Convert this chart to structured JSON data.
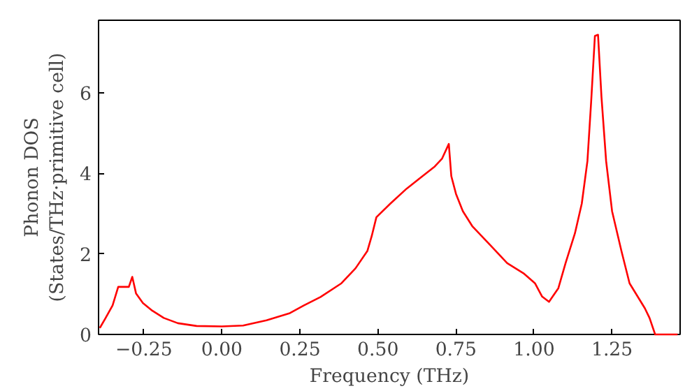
{
  "chart_data": {
    "type": "line",
    "xlabel": "Frequency (THz)",
    "ylabel": "Phonon DOS\n(States/THz·primitive cell)",
    "xlim": [
      -0.395,
      1.468
    ],
    "ylim": [
      0,
      7.8
    ],
    "xticks": [
      {
        "value": -0.25,
        "label": "−0.25"
      },
      {
        "value": 0,
        "label": "0.00"
      },
      {
        "value": 0.25,
        "label": "0.25"
      },
      {
        "value": 0.5,
        "label": "0.50"
      },
      {
        "value": 0.75,
        "label": "0.75"
      },
      {
        "value": 1.0,
        "label": "1.00"
      },
      {
        "value": 1.25,
        "label": "1.25"
      }
    ],
    "yticks": [
      0,
      2,
      4,
      6
    ],
    "series": [
      {
        "color": "#ff0000",
        "x": [
          -0.391,
          -0.373,
          -0.35,
          -0.332,
          -0.298,
          -0.287,
          -0.275,
          -0.253,
          -0.223,
          -0.186,
          -0.141,
          -0.081,
          0.0,
          0.068,
          0.143,
          0.218,
          0.263,
          0.316,
          0.383,
          0.428,
          0.466,
          0.48,
          0.495,
          0.54,
          0.592,
          0.682,
          0.705,
          0.727,
          0.735,
          0.75,
          0.772,
          0.802,
          0.862,
          0.914,
          0.966,
          1.003,
          1.026,
          1.048,
          1.078,
          1.101,
          1.131,
          1.153,
          1.171,
          1.183,
          1.195,
          1.205,
          1.216,
          1.231,
          1.25,
          1.28,
          1.306,
          1.355,
          1.37,
          1.388,
          1.46
        ],
        "values": [
          0.16,
          0.4,
          0.72,
          1.18,
          1.18,
          1.43,
          1.02,
          0.78,
          0.59,
          0.41,
          0.28,
          0.21,
          0.2,
          0.22,
          0.35,
          0.53,
          0.72,
          0.93,
          1.27,
          1.64,
          2.07,
          2.44,
          2.91,
          3.25,
          3.62,
          4.17,
          4.36,
          4.73,
          3.93,
          3.49,
          3.06,
          2.69,
          2.2,
          1.77,
          1.52,
          1.27,
          0.94,
          0.81,
          1.15,
          1.77,
          2.51,
          3.25,
          4.3,
          5.78,
          7.41,
          7.44,
          5.9,
          4.3,
          3.06,
          2.07,
          1.27,
          0.65,
          0.41,
          0,
          0
        ]
      }
    ]
  }
}
